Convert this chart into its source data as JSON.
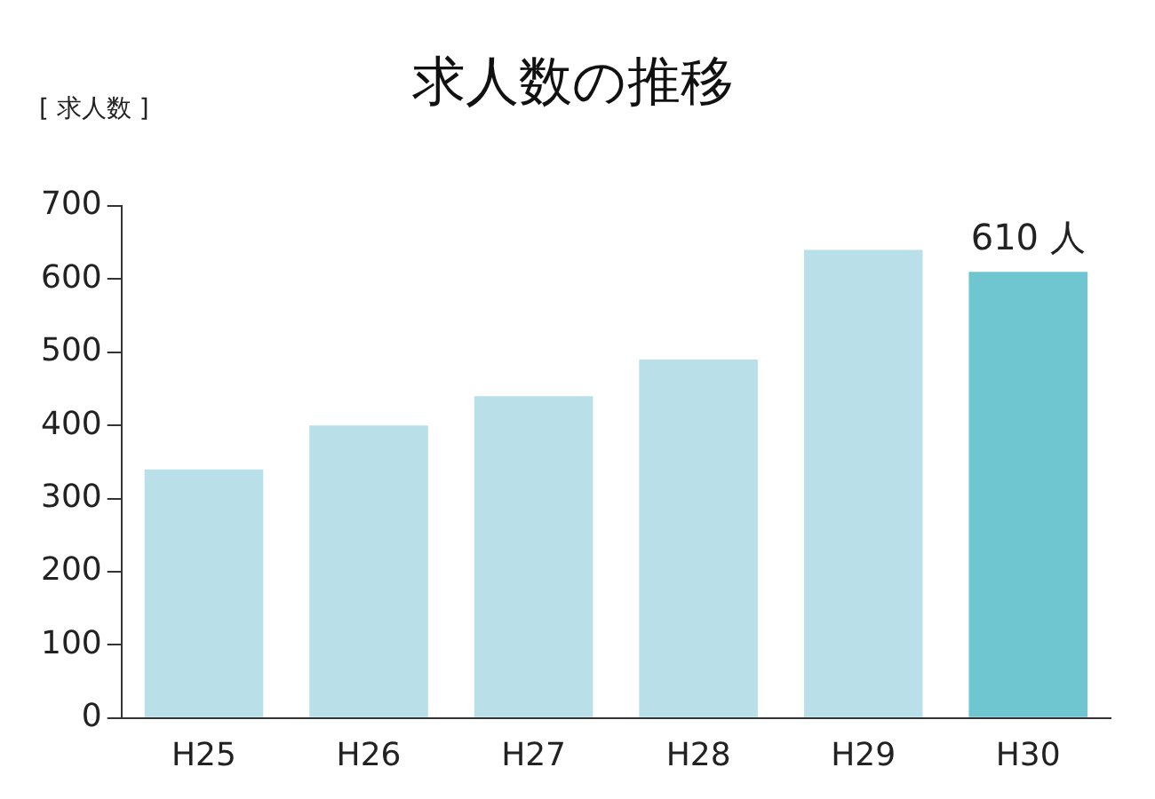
{
  "chart_data": {
    "type": "bar",
    "title": "求人数の推移",
    "ylabel": "[ 求人数 ]",
    "categories": [
      "H25",
      "H26",
      "H27",
      "H28",
      "H29",
      "H30"
    ],
    "values": [
      340,
      400,
      440,
      490,
      640,
      610
    ],
    "colors": [
      "#b9e0e8",
      "#b9e0e8",
      "#b9e0e8",
      "#b9e0e8",
      "#b9e0e8",
      "#6fc6d0"
    ],
    "value_labels": [
      null,
      null,
      null,
      null,
      null,
      "610 人"
    ],
    "ylim": [
      0,
      700
    ],
    "yticks": [
      0,
      100,
      200,
      300,
      400,
      500,
      600,
      700
    ],
    "grid": false,
    "legend": false
  }
}
